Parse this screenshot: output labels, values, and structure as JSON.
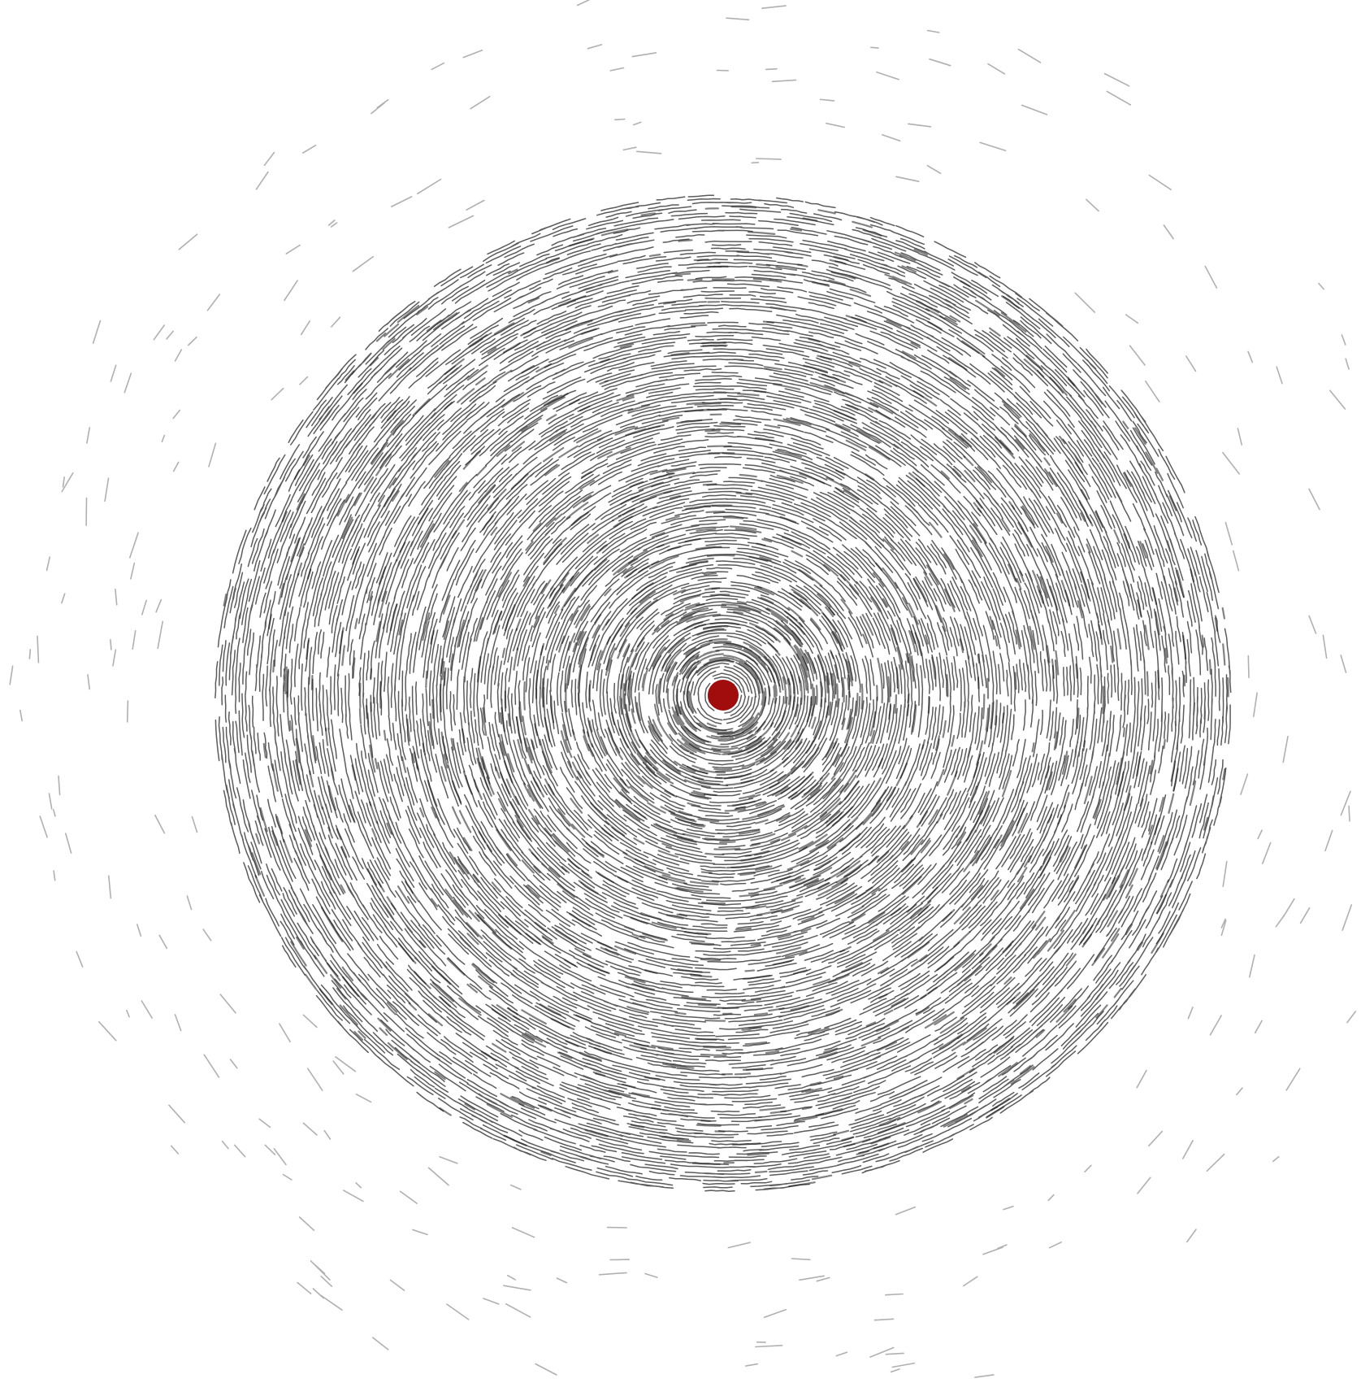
{
  "artwork": {
    "ink_color": "#1c1c1c",
    "accent_color": "#a10d0d",
    "background_color": "#ffffff"
  }
}
